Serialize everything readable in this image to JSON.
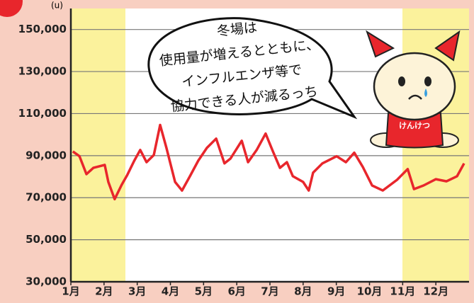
{
  "chart_data": {
    "type": "line",
    "y_unit": "(u)",
    "annotations": [
      "冬場は",
      "使用量が増えるとともに、",
      "インフルエンザ等で",
      "協力できる人が減るっち"
    ],
    "mascot_label": "けんけつ",
    "color": "#e8262c",
    "x": [
      1.06,
      1.26,
      1.47,
      1.68,
      2.02,
      2.13,
      2.32,
      2.53,
      2.7,
      2.91,
      3.09,
      3.28,
      3.5,
      3.69,
      3.88,
      4.14,
      4.35,
      4.59,
      4.84,
      5.1,
      5.38,
      5.63,
      5.81,
      6.15,
      6.34,
      6.6,
      6.87,
      7.09,
      7.3,
      7.51,
      7.69,
      8.0,
      8.17,
      8.3,
      8.58,
      9.01,
      9.29,
      9.54,
      9.8,
      10.08,
      10.4,
      10.83,
      11.15,
      11.34,
      11.63,
      12.0,
      12.32,
      12.64,
      12.85
    ],
    "values": [
      92000,
      89700,
      81200,
      84200,
      85600,
      77500,
      69300,
      76100,
      80800,
      87600,
      92700,
      86900,
      90300,
      104600,
      93700,
      77500,
      73400,
      80200,
      87600,
      93700,
      98100,
      86300,
      88600,
      97100,
      86900,
      92700,
      100500,
      92000,
      84200,
      86900,
      80200,
      77500,
      73400,
      81900,
      86300,
      89700,
      86900,
      91400,
      84600,
      75800,
      73400,
      78500,
      83600,
      74100,
      75800,
      78800,
      77800,
      80200,
      86300
    ],
    "xlim": [
      1,
      13
    ],
    "xticks": [
      {
        "value": 1,
        "label": "1月"
      },
      {
        "value": 2,
        "label": "2月"
      },
      {
        "value": 3,
        "label": "3月"
      },
      {
        "value": 4,
        "label": "4月"
      },
      {
        "value": 5,
        "label": "5月"
      },
      {
        "value": 6,
        "label": "6月"
      },
      {
        "value": 7,
        "label": "7月"
      },
      {
        "value": 8,
        "label": "8月"
      },
      {
        "value": 9,
        "label": "9月"
      },
      {
        "value": 10,
        "label": "10月"
      },
      {
        "value": 11,
        "label": "11月"
      },
      {
        "value": 12,
        "label": "12月"
      }
    ],
    "ylim": [
      30000,
      160000
    ],
    "yticks": [
      {
        "value": 30000,
        "label": "30,000"
      },
      {
        "value": 50000,
        "label": "50,000"
      },
      {
        "value": 70000,
        "label": "70,000"
      },
      {
        "value": 90000,
        "label": "90,000"
      },
      {
        "value": 110000,
        "label": "110,000"
      },
      {
        "value": 130000,
        "label": "130,000"
      },
      {
        "value": 150000,
        "label": "150,000"
      }
    ],
    "grid": true
  }
}
